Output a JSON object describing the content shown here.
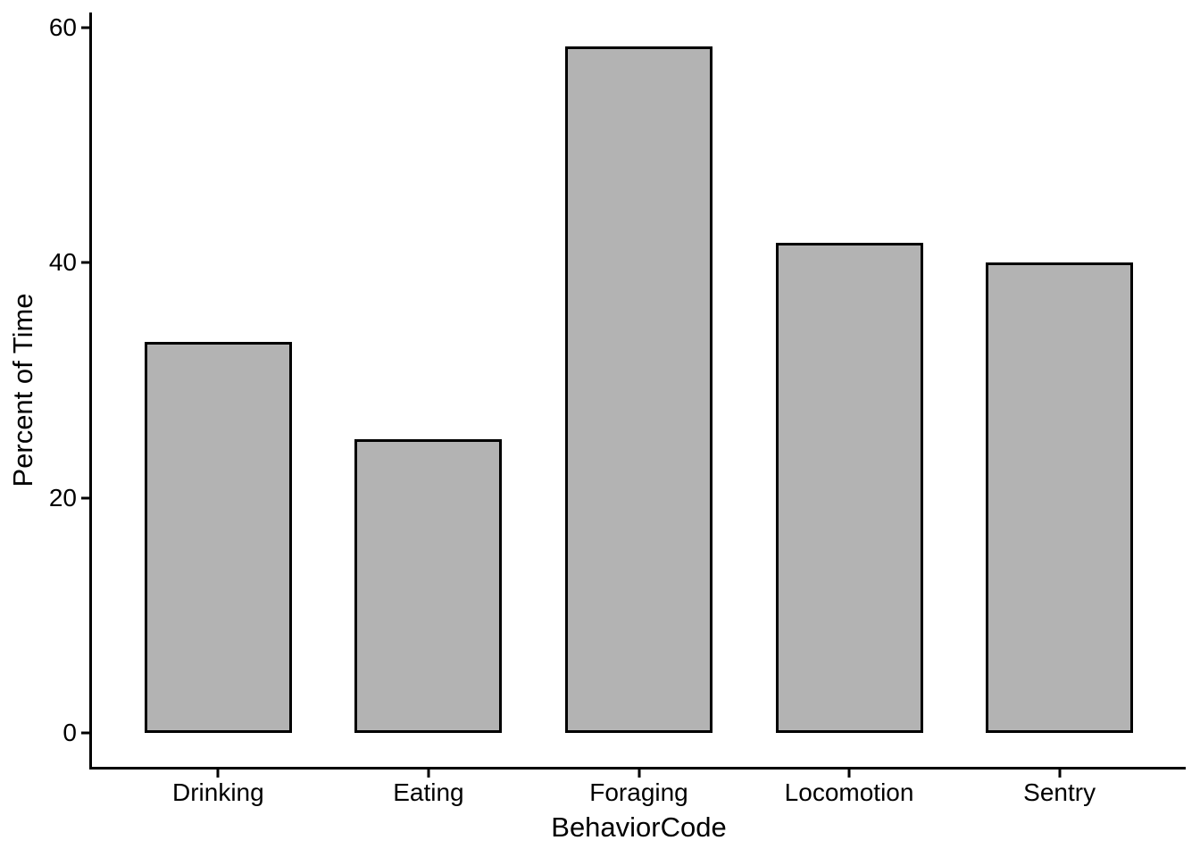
{
  "figure": {
    "background": "#ffffff"
  },
  "chart_data": {
    "type": "bar",
    "title": "",
    "xlabel": "BehaviorCode",
    "ylabel": "Percent of Time",
    "categories": [
      "Drinking",
      "Eating",
      "Foraging",
      "Locomotion",
      "Sentry"
    ],
    "values": [
      33.3,
      25.0,
      58.4,
      41.7,
      40.0
    ],
    "yticks": [
      0,
      20,
      40,
      60
    ],
    "ylim": [
      0,
      60
    ],
    "grid": false,
    "legend": false,
    "colors": {
      "bar_fill": "#b3b3b3",
      "bar_stroke": "#000000",
      "axis": "#000000",
      "text": "#000000",
      "background": "#ffffff"
    },
    "layout": {
      "y_min": -2.9,
      "y_max": 61.3,
      "x_min": 0.4,
      "x_max": 5.6,
      "bar_width": 0.7
    }
  }
}
